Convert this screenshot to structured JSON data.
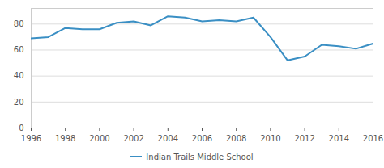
{
  "chart_data": {
    "type": "line",
    "x": [
      1996,
      1997,
      1998,
      1999,
      2000,
      2001,
      2002,
      2003,
      2004,
      2005,
      2006,
      2007,
      2008,
      2009,
      2010,
      2011,
      2012,
      2013,
      2014,
      2015,
      2016
    ],
    "series": [
      {
        "name": "Indian Trails Middle School",
        "color": "#3a8fc4",
        "values": [
          69,
          70,
          77,
          76,
          76,
          81,
          82,
          79,
          86,
          85,
          82,
          83,
          82,
          85,
          70,
          52,
          55,
          64,
          63,
          61,
          65
        ]
      }
    ],
    "xlim": [
      1996,
      2016
    ],
    "xticks": [
      1996,
      1998,
      2000,
      2002,
      2004,
      2006,
      2008,
      2010,
      2012,
      2014,
      2016
    ],
    "ylim": [
      0,
      92
    ],
    "yticks": [
      0,
      20,
      40,
      60,
      80
    ],
    "grid": true,
    "legend": "bottom"
  }
}
